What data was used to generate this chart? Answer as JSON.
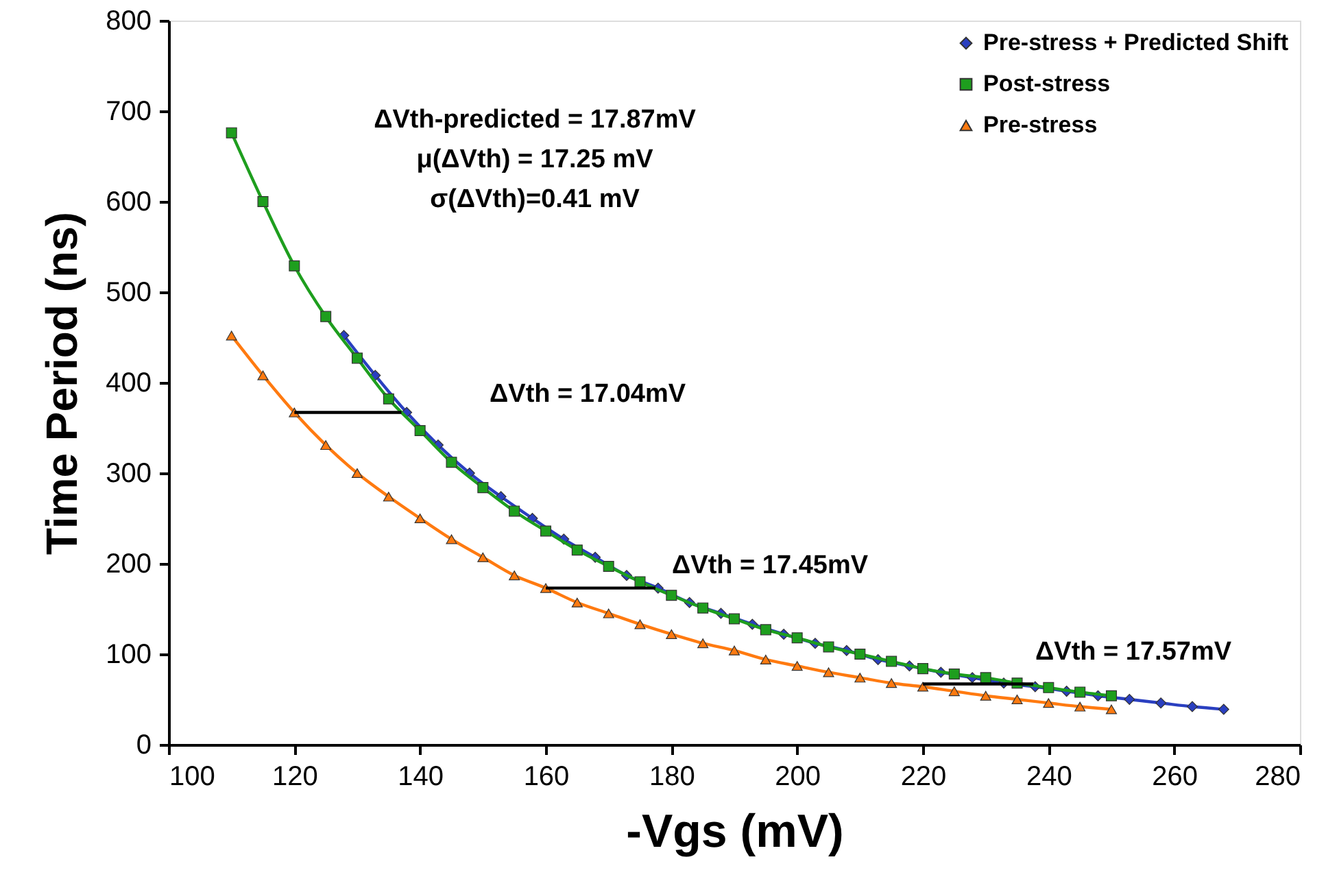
{
  "chart_data": {
    "type": "line",
    "xlabel": "-Vgs (mV)",
    "ylabel": "Time Period (ns)",
    "x": [
      110,
      115,
      120,
      125,
      130,
      135,
      140,
      145,
      150,
      155,
      160,
      165,
      170,
      175,
      180,
      185,
      190,
      195,
      200,
      205,
      210,
      215,
      220,
      225,
      230,
      235,
      240,
      245,
      250
    ],
    "xlim": [
      100,
      280
    ],
    "xticks": [
      100,
      120,
      140,
      160,
      180,
      200,
      220,
      240,
      260,
      280
    ],
    "ylim": [
      0,
      800
    ],
    "yticks": [
      0,
      100,
      200,
      300,
      400,
      500,
      600,
      700,
      800
    ],
    "grid": false,
    "legend": "top right",
    "line_style": "solid",
    "series": [
      {
        "name": "Pre-stress + Predicted Shift",
        "color": "#2a3fc0",
        "marker": "diamond",
        "x": [
          127.87,
          132.87,
          137.87,
          142.87,
          147.87,
          152.87,
          157.87,
          162.87,
          167.87,
          172.87,
          177.87,
          182.87,
          187.87,
          192.87,
          197.87,
          202.87,
          207.87,
          212.87,
          217.87,
          222.87,
          227.87,
          232.87,
          237.87,
          242.87,
          247.87,
          252.87,
          257.87,
          262.87,
          267.87
        ],
        "values": [
          452,
          408,
          367,
          331,
          300,
          274,
          250,
          227,
          207,
          187,
          173,
          157,
          145,
          133,
          122,
          112,
          104,
          94,
          87,
          80,
          74,
          68,
          64,
          59,
          54,
          50,
          46,
          42,
          39
        ]
      },
      {
        "name": "Post-stress",
        "color": "#1e9e1e",
        "marker": "square",
        "values": [
          676,
          600,
          529,
          473,
          427,
          382,
          347,
          312,
          284,
          258,
          236,
          215,
          197,
          180,
          165,
          151,
          139,
          127,
          118,
          108,
          100,
          92,
          84,
          78,
          74,
          68,
          63,
          58,
          54
        ]
      },
      {
        "name": "Pre-stress",
        "color": "#ff7a10",
        "marker": "triangle",
        "values": [
          452,
          408,
          367,
          331,
          300,
          274,
          250,
          227,
          207,
          187,
          173,
          157,
          145,
          133,
          122,
          112,
          104,
          94,
          87,
          80,
          74,
          68,
          64,
          59,
          54,
          50,
          46,
          42,
          39
        ]
      },
      {
        "color": "#000000",
        "marker": "none",
        "x": [
          120,
          137.04
        ],
        "values": [
          367,
          367
        ]
      },
      {
        "color": "#000000",
        "marker": "none",
        "x": [
          160,
          177.45
        ],
        "values": [
          173,
          173
        ]
      },
      {
        "color": "#000000",
        "marker": "none",
        "x": [
          220,
          237.57
        ],
        "values": [
          67,
          67
        ]
      }
    ],
    "annotations": [
      "ΔVth-predicted = 17.87mV",
      "μ(ΔVth) = 17.25 mV",
      "σ(ΔVth)=0.41 mV",
      "ΔVth = 17.04mV",
      "ΔVth = 17.45mV",
      "ΔVth = 17.57mV"
    ]
  }
}
